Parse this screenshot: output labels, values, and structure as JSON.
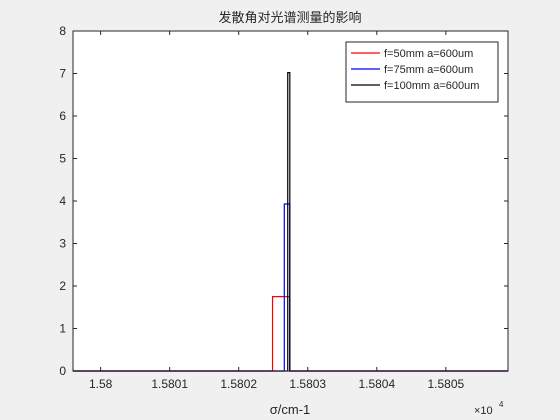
{
  "chart_data": {
    "type": "line",
    "title": "发散角对光谱测量的影响",
    "xlabel": "σ/cm-1",
    "ylabel": "",
    "x_multiplier": "×10",
    "x_exponent": "4",
    "xlim": [
      1.57996,
      1.58059
    ],
    "ylim": [
      0,
      8
    ],
    "xticks": [
      1.58,
      1.5801,
      1.5802,
      1.5803,
      1.5804,
      1.5805
    ],
    "xtick_labels": [
      "1.58",
      "1.5801",
      "1.5802",
      "1.5803",
      "1.5804",
      "1.5805"
    ],
    "yticks": [
      0,
      1,
      2,
      3,
      4,
      5,
      6,
      7,
      8
    ],
    "ytick_labels": [
      "0",
      "1",
      "2",
      "3",
      "4",
      "5",
      "6",
      "7",
      "8"
    ],
    "grid": false,
    "legend_position": "top-right",
    "series": [
      {
        "name": "f=50mm a=600um",
        "color": "#ff0000",
        "x": [
          1.57996,
          1.580249,
          1.580249,
          1.580274,
          1.580274,
          1.58059
        ],
        "y": [
          0,
          0,
          1.75,
          1.75,
          0,
          0
        ]
      },
      {
        "name": "f=75mm a=600um",
        "color": "#0000ff",
        "x": [
          1.57996,
          1.580266,
          1.580266,
          1.580274,
          1.580274,
          1.58059
        ],
        "y": [
          0,
          0,
          3.93,
          3.93,
          0,
          0
        ]
      },
      {
        "name": "f=100mm a=600um",
        "color": "#000000",
        "x": [
          1.57996,
          1.580271,
          1.580271,
          1.580274,
          1.580274,
          1.58059
        ],
        "y": [
          0,
          0,
          7.02,
          7.02,
          0,
          0
        ]
      }
    ]
  }
}
